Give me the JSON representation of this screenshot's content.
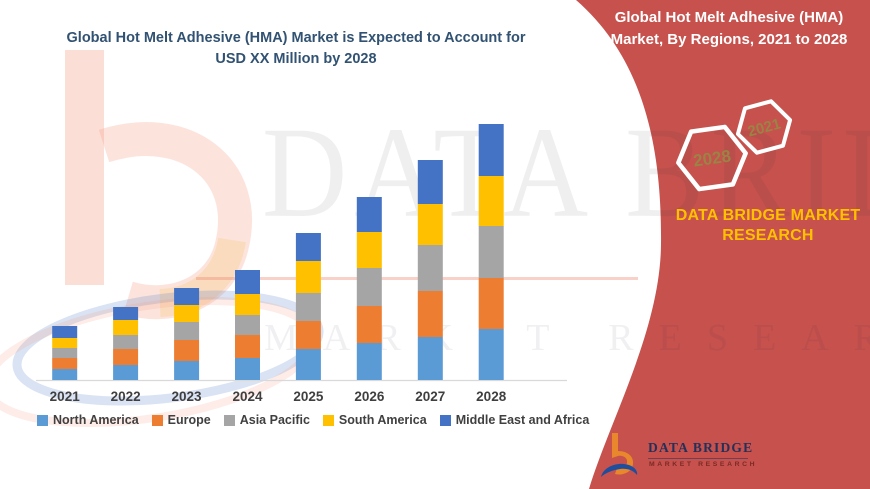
{
  "left_title": {
    "line1": "Global Hot Melt Adhesive (HMA) Market is Expected to Account for",
    "line2": "USD XX Million by 2028"
  },
  "right_panel": {
    "title_line1": "Global Hot Melt Adhesive (HMA)",
    "title_line2": "Market, By Regions, 2021 to 2028",
    "hexagons": [
      {
        "year": "2028"
      },
      {
        "year": "2021"
      }
    ],
    "brand_line1": "DATA BRIDGE MARKET",
    "brand_line2": "RESEARCH",
    "accent_red": "#C6514D",
    "gold": "#FFC000",
    "hex_year_color": "#9B8345"
  },
  "watermark": {
    "row1": "DATA BRIDGE",
    "row2": "MARKET RESEARCH"
  },
  "logo": {
    "name_text": "DATA BRIDGE",
    "sub_text": "MARKET RESEARCH"
  },
  "chart_data": {
    "type": "bar",
    "stacked": true,
    "title": "Global Hot Melt Adhesive (HMA) Market is Expected to Account for USD XX Million by 2028",
    "xlabel": "",
    "ylabel": "",
    "value_axis_visible": false,
    "grid": false,
    "legend_position": "bottom",
    "categories": [
      "2021",
      "2022",
      "2023",
      "2024",
      "2025",
      "2026",
      "2027",
      "2028"
    ],
    "series": [
      {
        "name": "North America",
        "color": "#5B9BD5",
        "values": [
          11,
          15,
          19,
          22,
          31,
          37,
          43,
          51
        ]
      },
      {
        "name": "Europe",
        "color": "#ED7D31",
        "values": [
          11,
          16,
          21,
          23,
          28,
          37,
          46,
          51
        ]
      },
      {
        "name": "Asia Pacific",
        "color": "#A5A5A5",
        "values": [
          10,
          14,
          18,
          20,
          28,
          38,
          46,
          52
        ]
      },
      {
        "name": "South America",
        "color": "#FFC000",
        "values": [
          10,
          15,
          17,
          21,
          32,
          36,
          41,
          50
        ]
      },
      {
        "name": "Middle East and Africa",
        "color": "#4472C4",
        "values": [
          12,
          13,
          17,
          24,
          28,
          35,
          44,
          52
        ]
      }
    ],
    "note": "Relative stacked segment sizes read from pixels; value axis not shown (values undisclosed as XX)",
    "x_tick_color": "#3F3F3F",
    "axis_line_color": "#D9D9D9"
  }
}
